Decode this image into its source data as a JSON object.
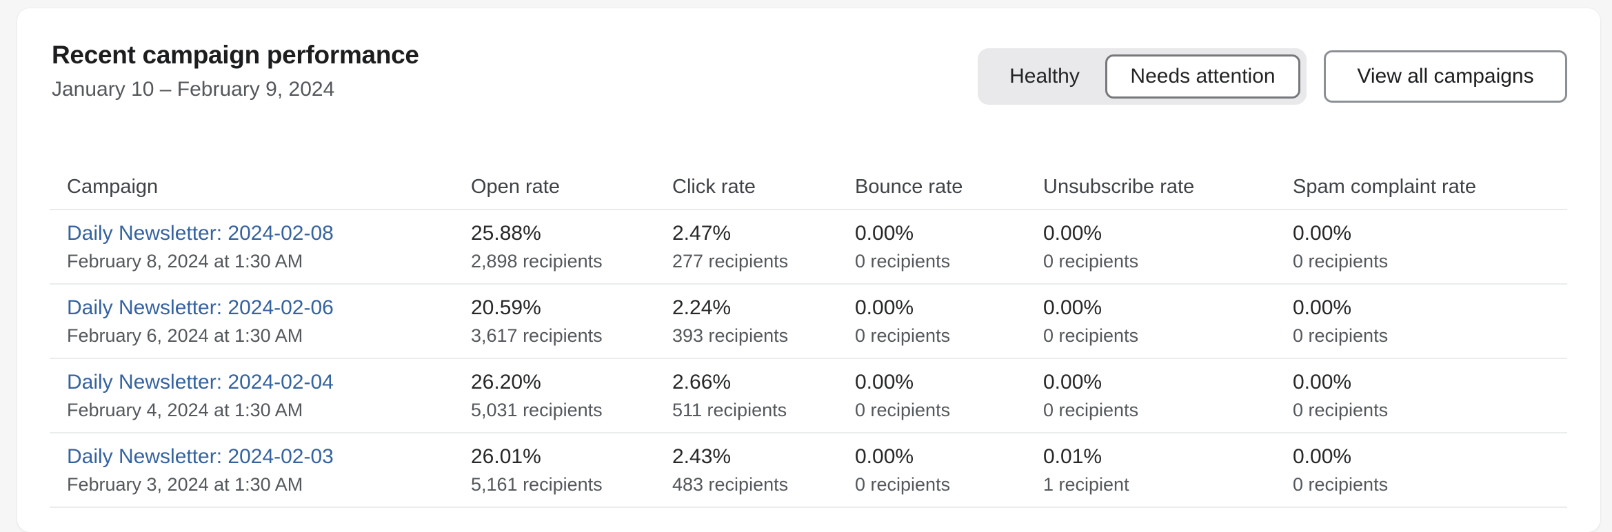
{
  "header": {
    "title": "Recent campaign performance",
    "date_range": "January 10 – February 9, 2024"
  },
  "controls": {
    "segmented": {
      "options": [
        "Healthy",
        "Needs attention"
      ],
      "selected": "Needs attention"
    },
    "view_all_label": "View all campaigns"
  },
  "table": {
    "columns": [
      "Campaign",
      "Open rate",
      "Click rate",
      "Bounce rate",
      "Unsubscribe rate",
      "Spam complaint rate"
    ],
    "rows": [
      {
        "campaign": "Daily Newsletter: 2024-02-08",
        "sent": "February 8, 2024 at 1:30 AM",
        "open": "25.88%",
        "open_sub": "2,898 recipients",
        "click": "2.47%",
        "click_sub": "277 recipients",
        "bounce": "0.00%",
        "bounce_sub": "0 recipients",
        "unsub": "0.00%",
        "unsub_sub": "0 recipients",
        "spam": "0.00%",
        "spam_sub": "0 recipients"
      },
      {
        "campaign": "Daily Newsletter: 2024-02-06",
        "sent": "February 6, 2024 at 1:30 AM",
        "open": "20.59%",
        "open_sub": "3,617 recipients",
        "click": "2.24%",
        "click_sub": "393 recipients",
        "bounce": "0.00%",
        "bounce_sub": "0 recipients",
        "unsub": "0.00%",
        "unsub_sub": "0 recipients",
        "spam": "0.00%",
        "spam_sub": "0 recipients"
      },
      {
        "campaign": "Daily Newsletter: 2024-02-04",
        "sent": "February 4, 2024 at 1:30 AM",
        "open": "26.20%",
        "open_sub": "5,031 recipients",
        "click": "2.66%",
        "click_sub": "511 recipients",
        "bounce": "0.00%",
        "bounce_sub": "0 recipients",
        "unsub": "0.00%",
        "unsub_sub": "0 recipients",
        "spam": "0.00%",
        "spam_sub": "0 recipients"
      },
      {
        "campaign": "Daily Newsletter: 2024-02-03",
        "sent": "February 3, 2024 at 1:30 AM",
        "open": "26.01%",
        "open_sub": "5,161 recipients",
        "click": "2.43%",
        "click_sub": "483 recipients",
        "bounce": "0.00%",
        "bounce_sub": "0 recipients",
        "unsub": "0.01%",
        "unsub_sub": "1 recipient",
        "spam": "0.00%",
        "spam_sub": "0 recipients"
      }
    ]
  },
  "colors": {
    "page_background": "#f6f6f7",
    "card_background": "#ffffff",
    "link": "#35639f",
    "divider": "#ebeced",
    "segmented_background": "#e9e9eb",
    "selected_segment_border": "#77787c",
    "button_border": "#8c9094"
  }
}
